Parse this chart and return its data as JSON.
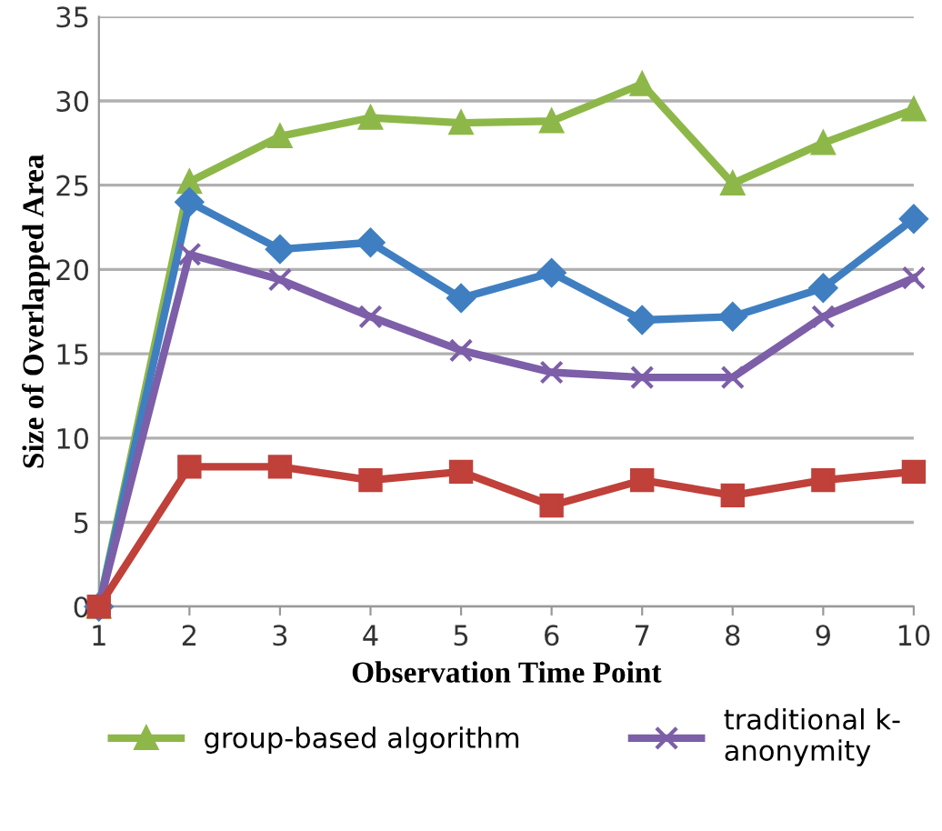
{
  "chart_data": {
    "type": "line",
    "xlabel": "Observation Time Point",
    "ylabel": "Size of Overlapped Area",
    "categories": [
      "1",
      "2",
      "3",
      "4",
      "5",
      "6",
      "7",
      "8",
      "9",
      "10"
    ],
    "series": [
      {
        "name": "group-based algorithm",
        "color": "#8db849",
        "marker": "triangle",
        "values": [
          0,
          25.2,
          27.9,
          29,
          28.7,
          28.8,
          31,
          25.1,
          27.5,
          29.5
        ]
      },
      {
        "color": "#3f7fc1",
        "marker": "diamond",
        "values": [
          0,
          24,
          21.2,
          21.6,
          18.3,
          19.8,
          17,
          17.2,
          18.9,
          23
        ]
      },
      {
        "name": "traditional k-\nanonymity",
        "color": "#7d5ea8",
        "marker": "cross",
        "values": [
          0,
          20.9,
          19.4,
          17.2,
          15.2,
          13.9,
          13.6,
          13.6,
          17.2,
          19.5
        ]
      },
      {
        "color": "#c0403a",
        "marker": "square",
        "values": [
          0,
          8.3,
          8.3,
          7.5,
          8,
          6,
          7.5,
          6.6,
          7.5,
          8
        ]
      }
    ],
    "ylim": [
      0,
      35
    ],
    "yticks": [
      0,
      5,
      10,
      15,
      20,
      25,
      30,
      35
    ],
    "grid": "y",
    "legend": "bottom"
  }
}
